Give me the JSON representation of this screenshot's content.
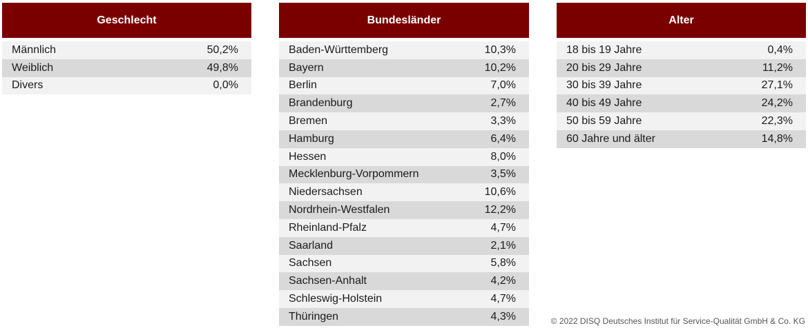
{
  "colors": {
    "header_bg": "#7a0000",
    "row_light": "#f2f2f2",
    "row_dark": "#d9d9d9"
  },
  "tables": [
    {
      "title": "Geschlecht",
      "rows": [
        {
          "label": "Männlich",
          "value": "50,2%"
        },
        {
          "label": "Weiblich",
          "value": "49,8%"
        },
        {
          "label": "Divers",
          "value": "0,0%"
        }
      ]
    },
    {
      "title": "Bundesländer",
      "rows": [
        {
          "label": "Baden-Württemberg",
          "value": "10,3%"
        },
        {
          "label": "Bayern",
          "value": "10,2%"
        },
        {
          "label": "Berlin",
          "value": "7,0%"
        },
        {
          "label": "Brandenburg",
          "value": "2,7%"
        },
        {
          "label": "Bremen",
          "value": "3,3%"
        },
        {
          "label": "Hamburg",
          "value": "6,4%"
        },
        {
          "label": "Hessen",
          "value": "8,0%"
        },
        {
          "label": "Mecklenburg-Vorpommern",
          "value": "3,5%"
        },
        {
          "label": "Niedersachsen",
          "value": "10,6%"
        },
        {
          "label": "Nordrhein-Westfalen",
          "value": "12,2%"
        },
        {
          "label": "Rheinland-Pfalz",
          "value": "4,7%"
        },
        {
          "label": "Saarland",
          "value": "2,1%"
        },
        {
          "label": "Sachsen",
          "value": "5,8%"
        },
        {
          "label": "Sachsen-Anhalt",
          "value": "4,2%"
        },
        {
          "label": "Schleswig-Holstein",
          "value": "4,7%"
        },
        {
          "label": "Thüringen",
          "value": "4,3%"
        }
      ]
    },
    {
      "title": "Alter",
      "rows": [
        {
          "label": "18 bis 19 Jahre",
          "value": "0,4%"
        },
        {
          "label": "20 bis 29 Jahre",
          "value": "11,2%"
        },
        {
          "label": "30 bis 39 Jahre",
          "value": "27,1%"
        },
        {
          "label": "40 bis 49 Jahre",
          "value": "24,2%"
        },
        {
          "label": "50 bis 59 Jahre",
          "value": "22,3%"
        },
        {
          "label": "60 Jahre und älter",
          "value": "14,8%"
        }
      ]
    }
  ],
  "footer": {
    "copyright": "© 2022 DISQ Deutsches Institut für Service-Qualität GmbH & Co. KG"
  }
}
